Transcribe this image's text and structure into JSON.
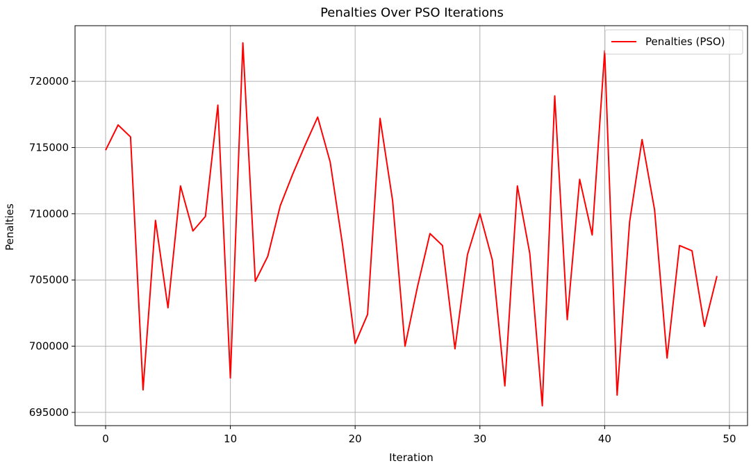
{
  "chart_data": {
    "type": "line",
    "title": "Penalties Over PSO Iterations",
    "xlabel": "Iteration",
    "ylabel": "Penalties",
    "xlim": [
      -2.45,
      51.45
    ],
    "ylim": [
      694000,
      724200
    ],
    "xticks": [
      0,
      10,
      20,
      30,
      40,
      50
    ],
    "yticks": [
      695000,
      700000,
      705000,
      710000,
      715000,
      720000
    ],
    "grid": true,
    "legend_position": "upper right",
    "series": [
      {
        "name": "Penalties (PSO)",
        "color": "#ff0000",
        "x": [
          0,
          1,
          2,
          3,
          4,
          5,
          6,
          7,
          8,
          9,
          10,
          11,
          12,
          13,
          14,
          15,
          16,
          17,
          18,
          19,
          20,
          21,
          22,
          23,
          24,
          25,
          26,
          27,
          28,
          29,
          30,
          31,
          32,
          33,
          34,
          35,
          36,
          37,
          38,
          39,
          40,
          41,
          42,
          43,
          44,
          45,
          46,
          47,
          48,
          49
        ],
        "values": [
          714800,
          716700,
          715800,
          696700,
          709500,
          702900,
          712100,
          708700,
          709800,
          718200,
          697600,
          722900,
          704900,
          706800,
          710600,
          713000,
          715200,
          717300,
          713900,
          707600,
          700200,
          702400,
          717200,
          711000,
          700000,
          704500,
          708500,
          707600,
          699800,
          706900,
          710000,
          706500,
          697000,
          712100,
          707000,
          695500,
          718900,
          702000,
          712600,
          708400,
          722300,
          696300,
          709400,
          715600,
          710300,
          699100,
          707600,
          707200,
          701500,
          705300
        ]
      }
    ]
  }
}
